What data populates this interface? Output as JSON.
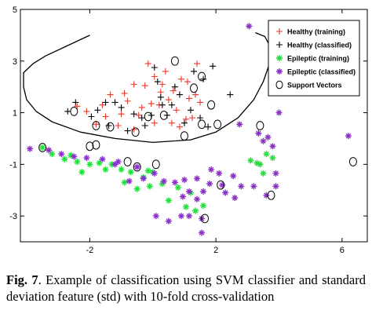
{
  "chart_data": {
    "type": "scatter",
    "xlim": [
      -4.2,
      6.8
    ],
    "ylim": [
      -4,
      5
    ],
    "x_ticks": [
      "-2",
      "2",
      "6"
    ],
    "y_ticks": [
      "5",
      "3",
      "1",
      "-1",
      "-3"
    ],
    "legend_position": "top-right",
    "colors": {
      "healthy_training": "#e8382b",
      "healthy_classified": "#000000",
      "epileptic_training": "#22e03a",
      "epileptic_classified": "#8b2fc9",
      "support_vectors": "#000000",
      "boundary": "#000000"
    },
    "series": [
      {
        "name": "Healthy (training)",
        "marker": "plus",
        "points": [
          [
            -1.35,
            1.7
          ],
          [
            -0.6,
            2.1
          ],
          [
            -0.15,
            2.9
          ],
          [
            0.05,
            2.4
          ],
          [
            0.4,
            2.6
          ],
          [
            0.25,
            1.8
          ],
          [
            0.9,
            2.3
          ],
          [
            1.4,
            2.9
          ],
          [
            1.1,
            2.2
          ],
          [
            -0.8,
            1.45
          ],
          [
            -1.0,
            0.95
          ],
          [
            -0.35,
            1.2
          ],
          [
            0.2,
            1.3
          ],
          [
            0.5,
            1.5
          ],
          [
            0.75,
            1.1
          ],
          [
            1.05,
            0.75
          ],
          [
            1.35,
            1.7
          ],
          [
            -1.6,
            1.3
          ],
          [
            -2.4,
            1.25
          ],
          [
            -2.1,
            1.05
          ],
          [
            -1.8,
            0.55
          ],
          [
            -1.1,
            0.5
          ],
          [
            -0.6,
            0.35
          ],
          [
            -0.05,
            1.35
          ],
          [
            0.05,
            0.6
          ],
          [
            0.6,
            0.6
          ],
          [
            1.25,
            0.8
          ],
          [
            1.5,
            1.4
          ],
          [
            0.3,
            2.1
          ],
          [
            -0.9,
            1.75
          ],
          [
            -0.25,
            2.05
          ],
          [
            0.65,
            1.85
          ],
          [
            1.15,
            1.55
          ],
          [
            -1.5,
            0.85
          ],
          [
            -0.45,
            0.9
          ],
          [
            0.85,
            0.45
          ]
        ]
      },
      {
        "name": "Healthy (classified)",
        "marker": "plus",
        "points": [
          [
            1.9,
            2.8
          ],
          [
            0.15,
            2.2
          ],
          [
            0.25,
            1.6
          ],
          [
            -1.2,
            1.4
          ],
          [
            -1.5,
            1.4
          ],
          [
            -2.45,
            1.4
          ],
          [
            -1.95,
            0.85
          ],
          [
            -1.4,
            0.5
          ],
          [
            -0.8,
            0.3
          ],
          [
            -0.35,
            0.8
          ],
          [
            -0.05,
            0.9
          ],
          [
            0.3,
            1.3
          ],
          [
            0.6,
            1.3
          ],
          [
            1.0,
            0.6
          ],
          [
            1.2,
            1.1
          ],
          [
            1.5,
            0.8
          ],
          [
            1.75,
            0.45
          ],
          [
            0.45,
            0.9
          ],
          [
            -0.25,
            0.5
          ],
          [
            0.7,
            2.0
          ],
          [
            2.45,
            1.7
          ],
          [
            -2.7,
            1.05
          ],
          [
            -1.75,
            1.1
          ],
          [
            0.85,
            1.7
          ],
          [
            1.6,
            2.3
          ],
          [
            -0.6,
            0.95
          ],
          [
            -1.0,
            1.2
          ],
          [
            0.05,
            2.75
          ],
          [
            1.3,
            2.6
          ]
        ]
      },
      {
        "name": "Epileptic (training)",
        "marker": "star",
        "points": [
          [
            -3.5,
            -0.35
          ],
          [
            -3.2,
            -0.6
          ],
          [
            -2.8,
            -0.8
          ],
          [
            -2.4,
            -0.9
          ],
          [
            -2.0,
            -1.0
          ],
          [
            -1.7,
            -0.95
          ],
          [
            -1.3,
            -1.0
          ],
          [
            -1.0,
            -1.2
          ],
          [
            -0.7,
            -1.3
          ],
          [
            -0.3,
            -1.5
          ],
          [
            0.0,
            -1.3
          ],
          [
            0.3,
            -1.75
          ],
          [
            0.8,
            -1.9
          ],
          [
            1.2,
            -2.1
          ],
          [
            1.6,
            -2.6
          ],
          [
            -2.25,
            -1.3
          ],
          [
            -1.5,
            -1.2
          ],
          [
            -0.9,
            -1.7
          ],
          [
            -0.5,
            -1.95
          ],
          [
            -0.1,
            -1.85
          ],
          [
            0.5,
            -2.4
          ],
          [
            1.05,
            -2.65
          ],
          [
            1.35,
            -2.8
          ],
          [
            3.1,
            -0.85
          ],
          [
            3.4,
            -1.0
          ],
          [
            3.6,
            -0.6
          ],
          [
            3.8,
            -0.75
          ],
          [
            3.5,
            -1.35
          ],
          [
            3.3,
            -0.95
          ],
          [
            -0.15,
            -1.25
          ],
          [
            -2.6,
            -0.65
          ]
        ]
      },
      {
        "name": "Epileptic (classified)",
        "marker": "star",
        "points": [
          [
            -3.9,
            -0.4
          ],
          [
            -3.3,
            -0.45
          ],
          [
            -2.9,
            -0.6
          ],
          [
            -2.5,
            -0.7
          ],
          [
            -2.1,
            -0.75
          ],
          [
            -1.6,
            -0.8
          ],
          [
            -1.1,
            -0.9
          ],
          [
            -0.5,
            -1.1
          ],
          [
            0.05,
            -1.35
          ],
          [
            0.35,
            -1.65
          ],
          [
            0.7,
            -1.7
          ],
          [
            1.0,
            -1.6
          ],
          [
            1.4,
            -1.55
          ],
          [
            1.8,
            -1.75
          ],
          [
            2.2,
            -1.8
          ],
          [
            2.55,
            -1.45
          ],
          [
            2.8,
            -1.85
          ],
          [
            3.2,
            -1.85
          ],
          [
            3.9,
            -1.85
          ],
          [
            1.15,
            -2.05
          ],
          [
            0.95,
            -2.25
          ],
          [
            1.6,
            -2.05
          ],
          [
            2.6,
            -2.3
          ],
          [
            2.3,
            -2.1
          ],
          [
            1.4,
            -2.35
          ],
          [
            0.9,
            -3.0
          ],
          [
            1.15,
            -3.0
          ],
          [
            1.55,
            -3.1
          ],
          [
            0.5,
            -3.2
          ],
          [
            0.1,
            -3.0
          ],
          [
            2.75,
            0.55
          ],
          [
            3.5,
            -0.1
          ],
          [
            3.8,
            -0.3
          ],
          [
            3.35,
            0.2
          ],
          [
            3.65,
            0.05
          ],
          [
            4.0,
            1.0
          ],
          [
            3.9,
            -1.35
          ],
          [
            3.6,
            -2.2
          ],
          [
            3.05,
            4.35
          ],
          [
            6.2,
            0.1
          ],
          [
            1.55,
            -3.65
          ],
          [
            1.85,
            -1.2
          ],
          [
            2.1,
            -1.35
          ],
          [
            -0.3,
            -1.55
          ],
          [
            -0.75,
            -1.65
          ],
          [
            -1.2,
            -1.0
          ]
        ]
      },
      {
        "name": "Support Vectors",
        "marker": "circle",
        "points": [
          [
            0.7,
            3.0
          ],
          [
            1.55,
            2.4
          ],
          [
            1.3,
            1.95
          ],
          [
            -2.5,
            1.05
          ],
          [
            -1.8,
            0.5
          ],
          [
            -1.35,
            0.45
          ],
          [
            -0.55,
            0.25
          ],
          [
            -0.15,
            0.85
          ],
          [
            0.35,
            0.9
          ],
          [
            1.0,
            0.1
          ],
          [
            1.55,
            0.55
          ],
          [
            1.85,
            1.3
          ],
          [
            2.05,
            0.55
          ],
          [
            3.4,
            0.5
          ],
          [
            -3.5,
            -0.35
          ],
          [
            -1.8,
            -0.25
          ],
          [
            -2.0,
            -0.3
          ],
          [
            -0.8,
            -0.9
          ],
          [
            -0.5,
            -1.1
          ],
          [
            0.1,
            -1.0
          ],
          [
            1.65,
            -3.1
          ],
          [
            2.15,
            -1.8
          ],
          [
            3.75,
            -2.2
          ],
          [
            6.35,
            -0.9
          ]
        ]
      }
    ],
    "decision_boundary": [
      [
        -2.0,
        4.0
      ],
      [
        -2.7,
        3.6
      ],
      [
        -3.4,
        3.2
      ],
      [
        -3.8,
        2.9
      ],
      [
        -4.1,
        2.55
      ],
      [
        -4.1,
        2.0
      ],
      [
        -4.0,
        1.5
      ],
      [
        -3.7,
        1.05
      ],
      [
        -3.2,
        0.65
      ],
      [
        -2.3,
        0.25
      ],
      [
        -1.2,
        0.0
      ],
      [
        0.0,
        -0.15
      ],
      [
        1.2,
        -0.05
      ],
      [
        2.0,
        0.25
      ],
      [
        2.7,
        0.8
      ],
      [
        3.2,
        1.5
      ],
      [
        3.5,
        2.2
      ],
      [
        3.7,
        2.9
      ],
      [
        3.75,
        3.5
      ],
      [
        3.55,
        3.95
      ],
      [
        3.25,
        4.1
      ]
    ]
  },
  "legend": [
    {
      "label": "Healthy (training)",
      "marker": "plus",
      "color": "#e8382b"
    },
    {
      "label": "Healthy (classified)",
      "marker": "plus",
      "color": "#000000"
    },
    {
      "label": "Epileptic (training)",
      "marker": "star",
      "color": "#22e03a"
    },
    {
      "label": "Epileptic (classified)",
      "marker": "star",
      "color": "#8b2fc9"
    },
    {
      "label": "Support Vectors",
      "marker": "circle",
      "color": "#000000"
    }
  ],
  "caption": {
    "label": "Fig. 7",
    "text": ".  Example of classification using SVM classifier and standard deviation feature (std) with 10-fold cross-validation"
  }
}
